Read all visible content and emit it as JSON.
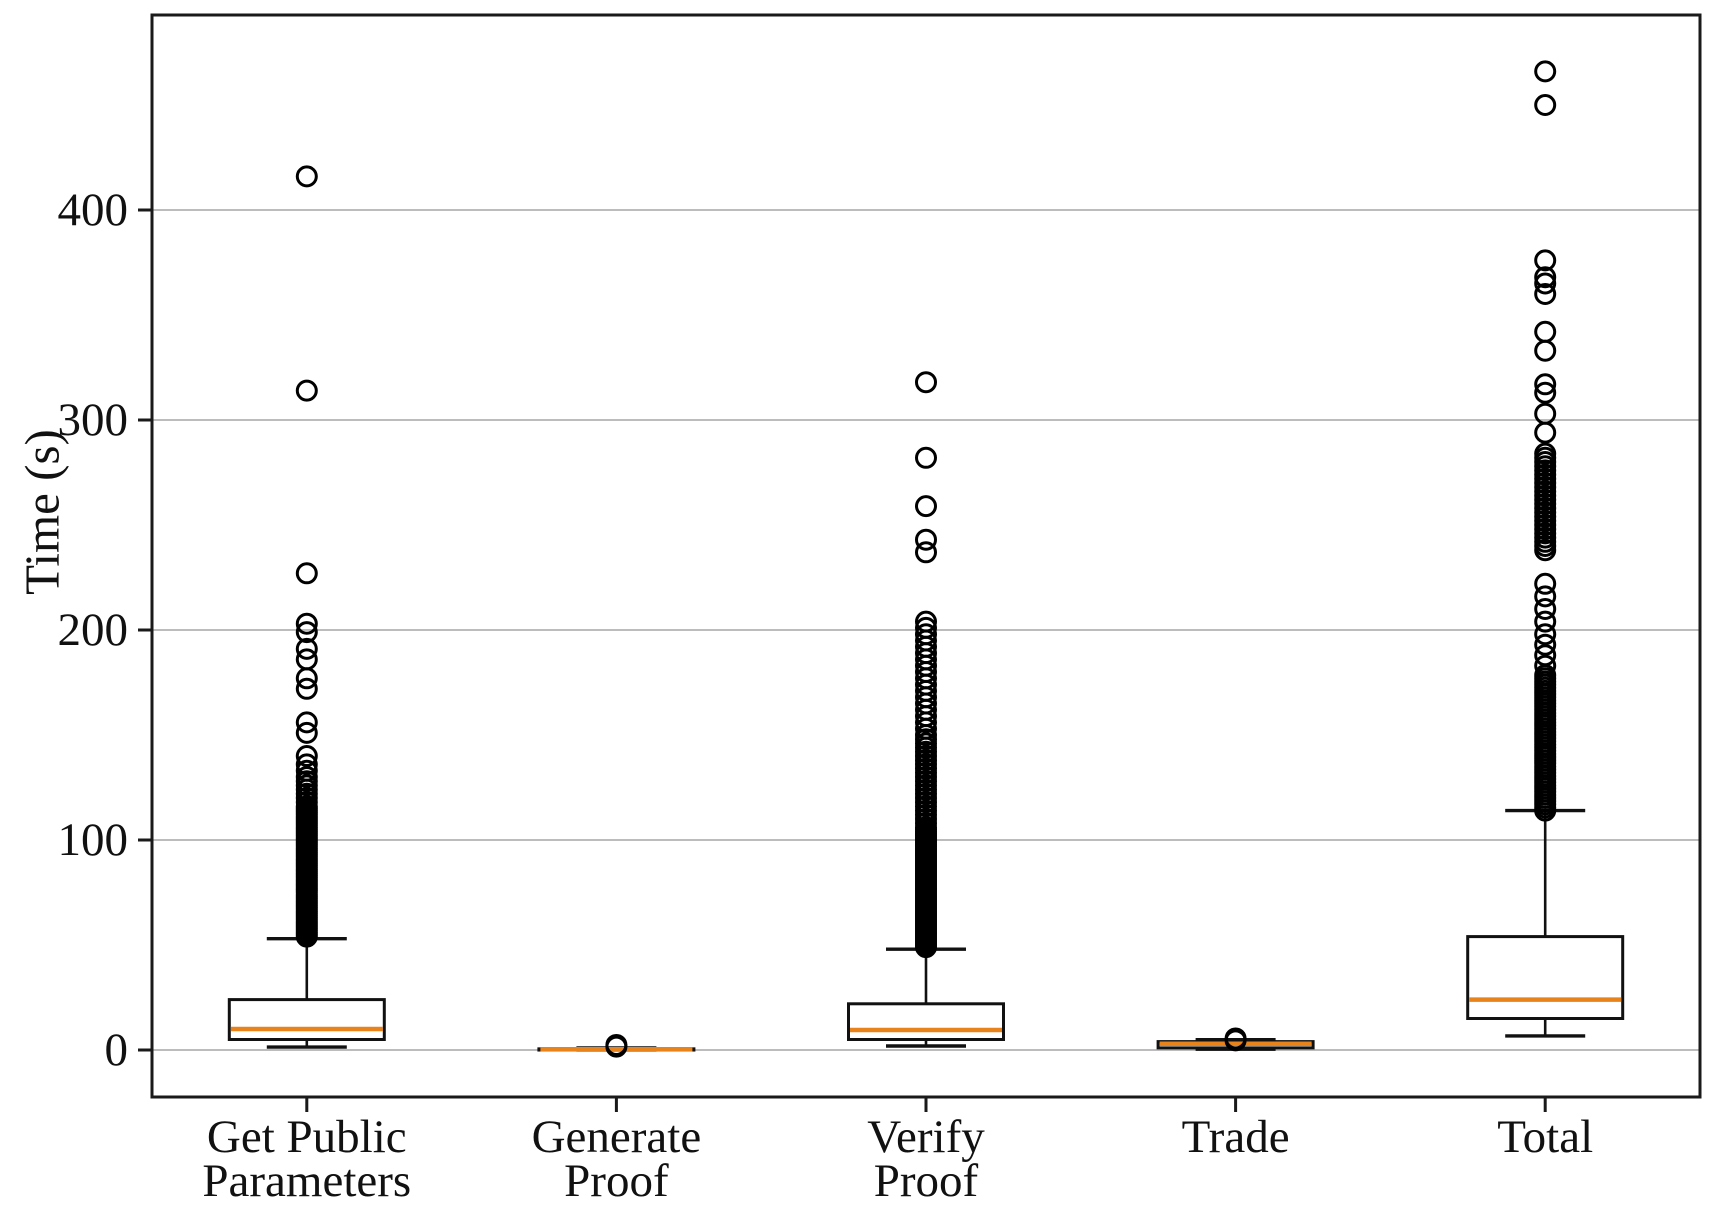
{
  "chart_data": {
    "type": "boxplot",
    "title": "",
    "ylabel": "Time (s)",
    "xlabel": "",
    "yticks": [
      0,
      100,
      200,
      300,
      400
    ],
    "ylim": [
      -22,
      493
    ],
    "grid": "horizontal-only",
    "legend": "none",
    "categories": [
      "Get Public Parameters",
      "Generate Proof",
      "Verify Proof",
      "Trade",
      "Total"
    ],
    "category_label_lines": [
      [
        "Get Public",
        "Parameters"
      ],
      [
        "Generate",
        "Proof"
      ],
      [
        "Verify",
        "Proof"
      ],
      [
        "Trade"
      ],
      [
        "Total"
      ]
    ],
    "series": [
      {
        "name": "Get Public Parameters",
        "q1": 5,
        "median": 10,
        "q3": 24,
        "whisker_low": 1.4,
        "whisker_high": 53,
        "outliers": [
          54,
          55,
          56,
          57,
          58,
          59,
          60,
          61,
          62,
          63,
          64,
          65,
          66,
          67,
          68,
          69,
          70,
          71,
          72,
          73,
          74,
          75,
          76,
          77,
          78,
          79,
          80,
          81,
          82,
          83,
          84,
          85,
          86,
          87,
          88,
          89,
          90,
          91,
          92,
          93,
          94,
          95,
          96,
          97,
          98,
          99,
          100,
          101,
          102,
          103,
          104,
          105,
          106,
          107,
          108,
          109,
          110,
          111,
          112,
          113,
          114,
          115,
          116,
          118,
          120,
          122,
          124,
          126,
          128,
          130,
          133,
          136,
          140,
          151,
          156,
          172,
          177,
          186,
          191,
          199,
          203,
          227,
          314,
          416
        ]
      },
      {
        "name": "Generate Proof",
        "q1": 0.15,
        "median": 0.35,
        "q3": 0.55,
        "whisker_low": 0.05,
        "whisker_high": 0.95,
        "outliers": [
          1.6,
          2.4
        ]
      },
      {
        "name": "Verify Proof",
        "q1": 5,
        "median": 9.5,
        "q3": 22,
        "whisker_low": 1.9,
        "whisker_high": 48,
        "outliers": [
          49,
          50,
          51,
          52,
          53,
          54,
          55,
          56,
          57,
          58,
          59,
          60,
          61,
          62,
          63,
          64,
          65,
          66,
          67,
          68,
          69,
          70,
          71,
          72,
          73,
          74,
          75,
          76,
          77,
          78,
          79,
          80,
          81,
          82,
          83,
          84,
          85,
          86,
          87,
          88,
          89,
          90,
          91,
          92,
          93,
          94,
          95,
          96,
          97,
          98,
          99,
          100,
          101,
          102,
          103,
          104,
          105,
          106,
          108,
          110,
          112,
          114,
          116,
          118,
          120,
          122,
          124,
          126,
          128,
          130,
          132,
          134,
          136,
          138,
          140,
          142,
          144,
          146,
          148,
          150,
          153,
          156,
          159,
          162,
          165,
          168,
          171,
          174,
          177,
          180,
          183,
          186,
          189,
          192,
          195,
          198,
          201,
          204,
          237,
          243,
          259,
          282,
          318
        ]
      },
      {
        "name": "Trade",
        "q1": 1.0,
        "median": 3.0,
        "q3": 4.0,
        "whisker_low": 0.4,
        "whisker_high": 4.9,
        "outliers": [
          4.6,
          5.5
        ]
      },
      {
        "name": "Total",
        "q1": 15,
        "median": 24,
        "q3": 54,
        "whisker_low": 6.7,
        "whisker_high": 114,
        "outliers": [
          114,
          115.5,
          117,
          118.5,
          120,
          121.5,
          123,
          124.5,
          126,
          127.5,
          129,
          130.5,
          132,
          133.5,
          135,
          136.5,
          138,
          139.5,
          141,
          142.5,
          144,
          145.5,
          147,
          148.5,
          150,
          151.5,
          153,
          154.5,
          156,
          157.5,
          159,
          160.5,
          162,
          163.5,
          165,
          166.5,
          168,
          169.5,
          171,
          172.5,
          174,
          175.5,
          177,
          178.5,
          183,
          188,
          193,
          198,
          204,
          210,
          216,
          222,
          238,
          240,
          242,
          244,
          246,
          248,
          250,
          252,
          254,
          256,
          258,
          260,
          262,
          264,
          266,
          268,
          270,
          272,
          274,
          276,
          278,
          280,
          282,
          284,
          294,
          303,
          313,
          317,
          333,
          342,
          360,
          365,
          368,
          376,
          450,
          466
        ]
      }
    ],
    "colors": {
      "median": "#e8821a",
      "box_stroke": "#111111",
      "gridline": "#bcbcbc",
      "outlier_stroke": "#000000",
      "frame": "#1a1a1a"
    }
  }
}
